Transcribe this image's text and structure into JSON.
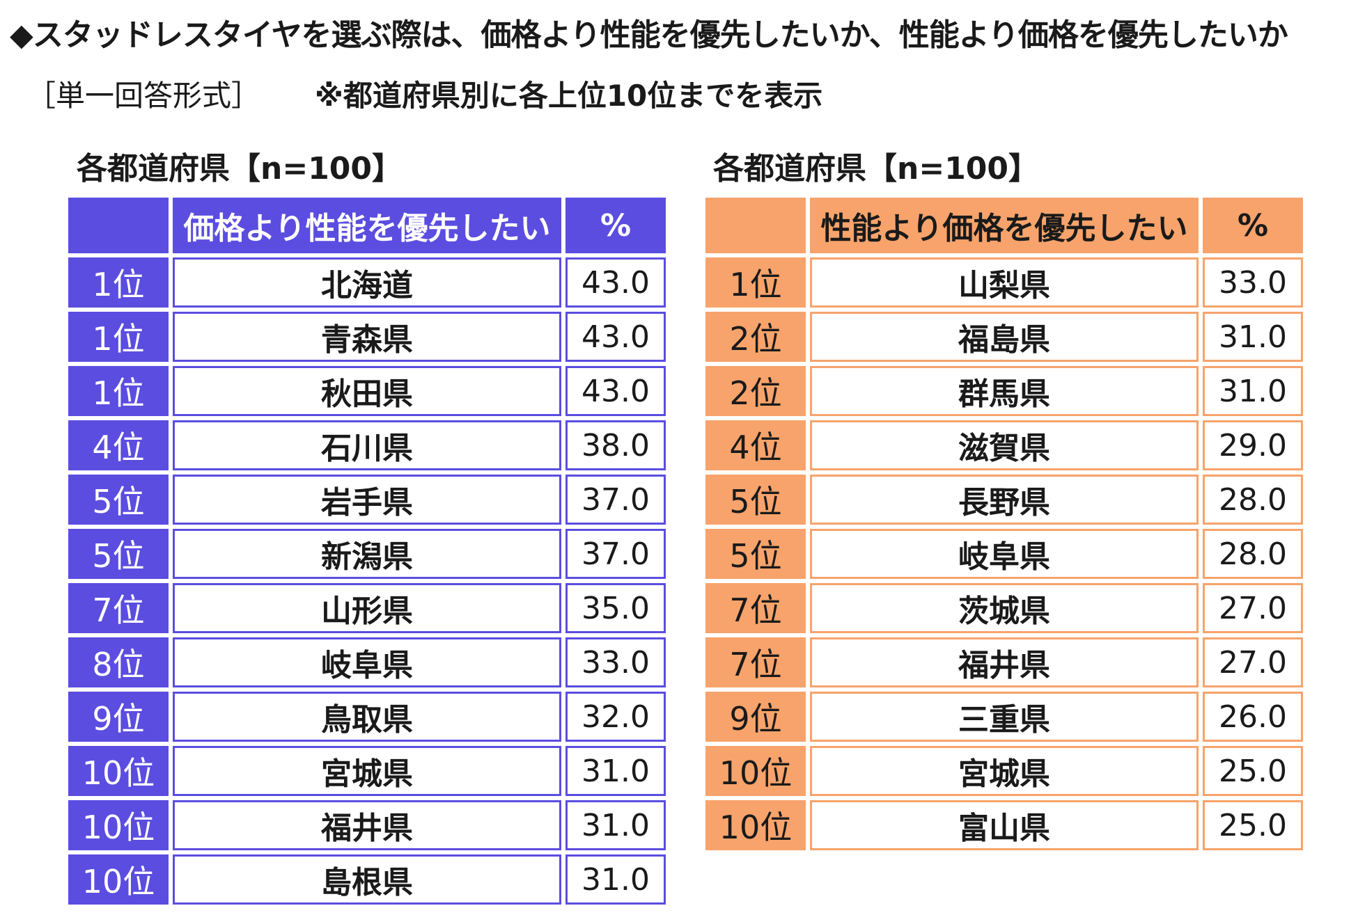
{
  "title": "◆スタッドレスタイヤを選ぶ際は、価格より性能を優先したいか、性能より価格を優先したいか",
  "format_label": "［単一回答形式］",
  "note": "※都道府県別に各上位10位までを表示",
  "colors": {
    "left_accent": "#5b4de0",
    "right_accent": "#f7a36b"
  },
  "left_table": {
    "caption": "各都道府県【n=100】",
    "header_rank": "",
    "header_item": "価格より性能を優先したい",
    "header_pct": "%",
    "rows": [
      {
        "rank": "1位",
        "prefecture": "北海道",
        "pct": "43.0"
      },
      {
        "rank": "1位",
        "prefecture": "青森県",
        "pct": "43.0"
      },
      {
        "rank": "1位",
        "prefecture": "秋田県",
        "pct": "43.0"
      },
      {
        "rank": "4位",
        "prefecture": "石川県",
        "pct": "38.0"
      },
      {
        "rank": "5位",
        "prefecture": "岩手県",
        "pct": "37.0"
      },
      {
        "rank": "5位",
        "prefecture": "新潟県",
        "pct": "37.0"
      },
      {
        "rank": "7位",
        "prefecture": "山形県",
        "pct": "35.0"
      },
      {
        "rank": "8位",
        "prefecture": "岐阜県",
        "pct": "33.0"
      },
      {
        "rank": "9位",
        "prefecture": "鳥取県",
        "pct": "32.0"
      },
      {
        "rank": "10位",
        "prefecture": "宮城県",
        "pct": "31.0"
      },
      {
        "rank": "10位",
        "prefecture": "福井県",
        "pct": "31.0"
      },
      {
        "rank": "10位",
        "prefecture": "島根県",
        "pct": "31.0"
      }
    ]
  },
  "right_table": {
    "caption": "各都道府県【n=100】",
    "header_rank": "",
    "header_item": "性能より価格を優先したい",
    "header_pct": "%",
    "rows": [
      {
        "rank": "1位",
        "prefecture": "山梨県",
        "pct": "33.0"
      },
      {
        "rank": "2位",
        "prefecture": "福島県",
        "pct": "31.0"
      },
      {
        "rank": "2位",
        "prefecture": "群馬県",
        "pct": "31.0"
      },
      {
        "rank": "4位",
        "prefecture": "滋賀県",
        "pct": "29.0"
      },
      {
        "rank": "5位",
        "prefecture": "長野県",
        "pct": "28.0"
      },
      {
        "rank": "5位",
        "prefecture": "岐阜県",
        "pct": "28.0"
      },
      {
        "rank": "7位",
        "prefecture": "茨城県",
        "pct": "27.0"
      },
      {
        "rank": "7位",
        "prefecture": "福井県",
        "pct": "27.0"
      },
      {
        "rank": "9位",
        "prefecture": "三重県",
        "pct": "26.0"
      },
      {
        "rank": "10位",
        "prefecture": "宮城県",
        "pct": "25.0"
      },
      {
        "rank": "10位",
        "prefecture": "富山県",
        "pct": "25.0"
      }
    ]
  }
}
